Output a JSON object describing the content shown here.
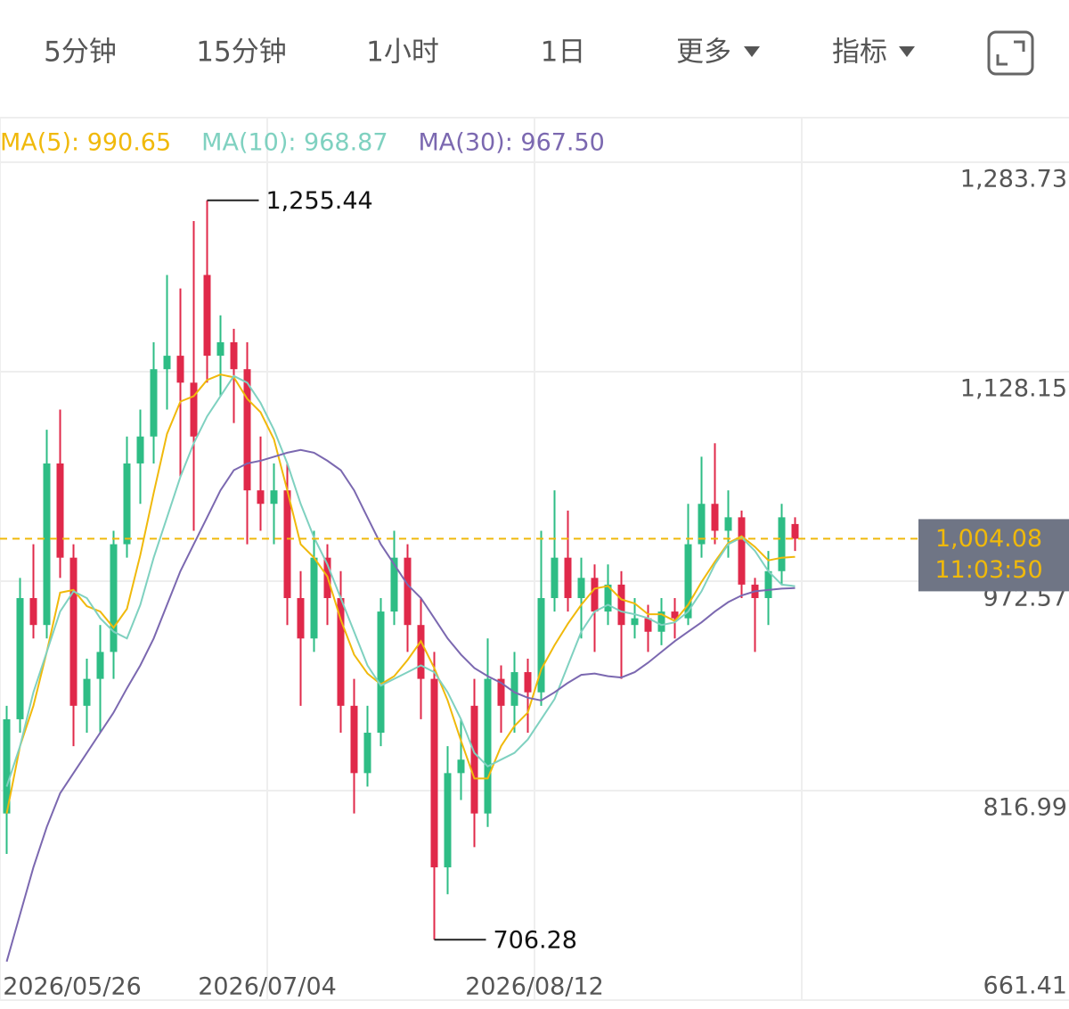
{
  "tabs": [
    "5分钟",
    "15分钟",
    "1小时",
    "1日",
    "更多",
    "指标"
  ],
  "active_tab": 3,
  "chart_data": {
    "type": "candlestick",
    "up_color": "#2ebd85",
    "down_color": "#e0294a",
    "xlim": [
      0,
      80
    ],
    "xticks": [
      {
        "value": 0,
        "label": "2026/05/26"
      },
      {
        "value": 20,
        "label": "2026/07/04"
      },
      {
        "value": 40,
        "label": "2026/08/12"
      },
      {
        "value": 60,
        "label": null
      }
    ],
    "ylim": [
      661.41,
      1283.73
    ],
    "yticks": [
      {
        "value": 1283.73,
        "label": "1,283.73"
      },
      {
        "value": 1128.15,
        "label": "1,128.15"
      },
      972.57,
      816.99,
      661.41
    ],
    "grid": true,
    "candles": [
      [
        800,
        880,
        770,
        870
      ],
      [
        870,
        975,
        860,
        960
      ],
      [
        960,
        1000,
        930,
        940
      ],
      [
        940,
        1085,
        930,
        1060
      ],
      [
        1060,
        1100,
        975,
        990
      ],
      [
        990,
        1000,
        850,
        880
      ],
      [
        880,
        915,
        860,
        900
      ],
      [
        900,
        940,
        860,
        920
      ],
      [
        920,
        1010,
        900,
        1000
      ],
      [
        1000,
        1080,
        990,
        1060
      ],
      [
        1060,
        1100,
        1030,
        1080
      ],
      [
        1080,
        1150,
        1060,
        1130
      ],
      [
        1130,
        1200,
        1100,
        1140
      ],
      [
        1140,
        1190,
        1050,
        1120
      ],
      [
        1120,
        1240,
        1010,
        1080
      ],
      [
        1200,
        1255.44,
        1120,
        1140
      ],
      [
        1140,
        1170,
        1110,
        1150
      ],
      [
        1150,
        1160,
        1090,
        1130
      ],
      [
        1130,
        1150,
        1000,
        1040
      ],
      [
        1040,
        1080,
        1010,
        1030
      ],
      [
        1030,
        1060,
        1000,
        1040
      ],
      [
        1040,
        1060,
        940,
        960
      ],
      [
        960,
        980,
        880,
        930
      ],
      [
        930,
        1010,
        920,
        990
      ],
      [
        990,
        1000,
        940,
        960
      ],
      [
        960,
        980,
        860,
        880
      ],
      [
        880,
        900,
        800,
        830
      ],
      [
        830,
        880,
        820,
        860
      ],
      [
        860,
        960,
        850,
        950
      ],
      [
        950,
        1010,
        940,
        990
      ],
      [
        990,
        1000,
        920,
        940
      ],
      [
        940,
        960,
        870,
        900
      ],
      [
        900,
        920,
        706.28,
        760
      ],
      [
        760,
        850,
        740,
        830
      ],
      [
        830,
        870,
        810,
        840
      ],
      [
        880,
        900,
        775,
        800
      ],
      [
        800,
        930,
        790,
        900
      ],
      [
        900,
        910,
        860,
        880
      ],
      [
        880,
        920,
        860,
        905
      ],
      [
        905,
        915,
        860,
        890
      ],
      [
        890,
        1010,
        880,
        960
      ],
      [
        960,
        1040,
        950,
        990
      ],
      [
        990,
        1025,
        950,
        960
      ],
      [
        960,
        990,
        930,
        975
      ],
      [
        975,
        985,
        920,
        950
      ],
      [
        950,
        985,
        940,
        970
      ],
      [
        970,
        980,
        900,
        940
      ],
      [
        940,
        960,
        930,
        945
      ],
      [
        945,
        955,
        920,
        935
      ],
      [
        935,
        960,
        925,
        950
      ],
      [
        950,
        960,
        930,
        945
      ],
      [
        945,
        1030,
        940,
        1000
      ],
      [
        1000,
        1065,
        990,
        1030
      ],
      [
        1030,
        1075,
        1000,
        1010
      ],
      [
        1010,
        1040,
        990,
        1020
      ],
      [
        1020,
        1025,
        960,
        970
      ],
      [
        970,
        975,
        920,
        960
      ],
      [
        960,
        995,
        940,
        980
      ],
      [
        980,
        1030,
        970,
        1020
      ],
      [
        1015,
        1020,
        995,
        1004.08
      ]
    ],
    "series": [
      {
        "name": "MA(5)",
        "legend": "MA(5): 990.65",
        "color": "#f0b90b",
        "values": [
          800,
          850,
          880,
          920,
          964,
          966,
          954,
          950,
          938,
          952,
          992,
          1038,
          1082,
          1106,
          1110,
          1122,
          1126,
          1124,
          1108,
          1098,
          1078,
          1040,
          1000,
          990,
          976,
          944,
          918,
          904,
          896,
          902,
          914,
          928,
          908,
          884,
          854,
          826,
          826,
          850,
          865,
          875,
          907,
          925,
          941,
          955,
          967,
          969,
          959,
          956,
          948,
          948,
          943,
          955,
          972,
          987,
          1001,
          1006,
          998,
          988,
          990,
          990.65
        ]
      },
      {
        "name": "MA(10)",
        "legend": "MA(10): 968.87",
        "color": "#7fd1c0",
        "values": [
          820,
          850,
          890,
          920,
          950,
          965,
          960,
          945,
          935,
          930,
          955,
          990,
          1020,
          1050,
          1075,
          1095,
          1110,
          1125,
          1120,
          1105,
          1085,
          1060,
          1030,
          1005,
          985,
          960,
          935,
          910,
          895,
          900,
          905,
          910,
          905,
          890,
          870,
          845,
          835,
          840,
          845,
          855,
          870,
          885,
          910,
          935,
          950,
          955,
          950,
          948,
          945,
          940,
          942,
          950,
          965,
          985,
          1000,
          1005,
          995,
          980,
          970,
          968.87
        ]
      },
      {
        "name": "MA(30)",
        "legend": "MA(30): 967.50",
        "color": "#7b68b0",
        "values": [
          690,
          725,
          760,
          790,
          815,
          830,
          845,
          860,
          875,
          893,
          910,
          930,
          955,
          980,
          1000,
          1020,
          1040,
          1055,
          1060,
          1062,
          1065,
          1068,
          1070,
          1068,
          1062,
          1055,
          1040,
          1020,
          1000,
          985,
          970,
          960,
          945,
          930,
          918,
          908,
          902,
          897,
          890,
          886,
          884,
          890,
          897,
          903,
          904,
          902,
          901,
          905,
          912,
          920,
          928,
          935,
          942,
          950,
          957,
          962,
          965,
          966,
          967,
          967.5
        ]
      }
    ],
    "annotations": [
      {
        "value": 1255.44,
        "label": "1,255.44"
      },
      {
        "value": 706.28,
        "label": "706.28"
      }
    ],
    "last_price": {
      "value": 1004.08,
      "label": "1,004.08"
    },
    "countdown": "11:03:50"
  }
}
